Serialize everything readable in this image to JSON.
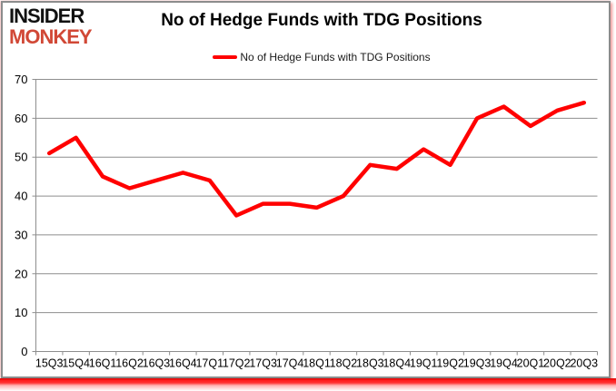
{
  "logo": {
    "line1": "INSIDER",
    "line2": "MONKEY"
  },
  "header": {
    "title": "No of Hedge Funds with TDG Positions"
  },
  "legend": {
    "label": "No of Hedge Funds with TDG Positions"
  },
  "colors": {
    "line": "#ff0000",
    "grid": "#8e8e8e",
    "text": "#000000",
    "legend_text": "#1a1a1a",
    "logo_black": "#111111",
    "logo_red": "#d14836",
    "panel_border": "#8c8c8c",
    "bottom_bar": "#ff0000"
  },
  "chart_data": {
    "type": "line",
    "title": "No of Hedge Funds with TDG Positions",
    "categories": [
      "15Q3",
      "15Q4",
      "16Q1",
      "16Q2",
      "16Q3",
      "16Q4",
      "17Q1",
      "17Q2",
      "17Q3",
      "17Q4",
      "18Q1",
      "18Q2",
      "18Q3",
      "18Q4",
      "19Q1",
      "19Q2",
      "19Q3",
      "19Q4",
      "20Q1",
      "20Q2",
      "20Q3"
    ],
    "series": [
      {
        "name": "No of Hedge Funds with TDG Positions",
        "values": [
          51,
          55,
          45,
          42,
          44,
          46,
          44,
          35,
          38,
          38,
          37,
          40,
          48,
          47,
          52,
          48,
          60,
          63,
          58,
          62,
          64
        ]
      }
    ],
    "xlabel": "",
    "ylabel": "",
    "ylim": [
      0,
      70
    ],
    "ytick_step": 10,
    "grid": "horizontal",
    "legend_position": "top",
    "line_color": "#ff0000"
  }
}
